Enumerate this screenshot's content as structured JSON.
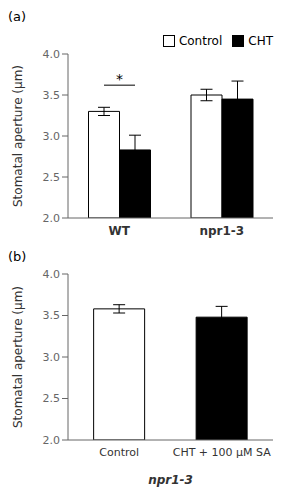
{
  "chart_data": [
    {
      "type": "bar",
      "title": "(a)",
      "categories": [
        "WT",
        "npr1-3"
      ],
      "series": [
        {
          "name": "Control",
          "color": "white",
          "values": [
            3.3,
            3.5
          ],
          "errors": [
            0.05,
            0.07
          ]
        },
        {
          "name": "CHT",
          "color": "black",
          "values": [
            2.83,
            3.45
          ],
          "errors": [
            0.18,
            0.22
          ]
        }
      ],
      "ylabel": "Stomatal aperture (μm)",
      "ylim": [
        2.0,
        4.0
      ],
      "yticks": [
        {
          "value": 2.0,
          "label": "2.0"
        },
        {
          "value": 2.5,
          "label": "2.5"
        },
        {
          "value": 3.0,
          "label": "3.0"
        },
        {
          "value": 3.5,
          "label": "3.5"
        },
        {
          "value": 4.0,
          "label": "4.0"
        }
      ],
      "legend": "upper right",
      "grid": false,
      "annotations": [
        {
          "text": "*",
          "category": "WT",
          "y": 3.62
        }
      ]
    },
    {
      "type": "bar",
      "title": "(b)",
      "categories": [
        "Control",
        "CHT + 100 μM SA"
      ],
      "values": [
        3.58,
        3.48
      ],
      "errors": [
        0.05,
        0.13
      ],
      "colors": [
        "white",
        "black"
      ],
      "ylabel": "Stomatal aperture (μm)",
      "xlabel": "npr1-3",
      "ylim": [
        2.0,
        4.0
      ],
      "yticks": [
        {
          "value": 2.0,
          "label": "2.0"
        },
        {
          "value": 2.5,
          "label": "2.5"
        },
        {
          "value": 3.0,
          "label": "3.0"
        },
        {
          "value": 3.5,
          "label": "3.5"
        },
        {
          "value": 4.0,
          "label": "4.0"
        }
      ],
      "grid": false
    }
  ]
}
